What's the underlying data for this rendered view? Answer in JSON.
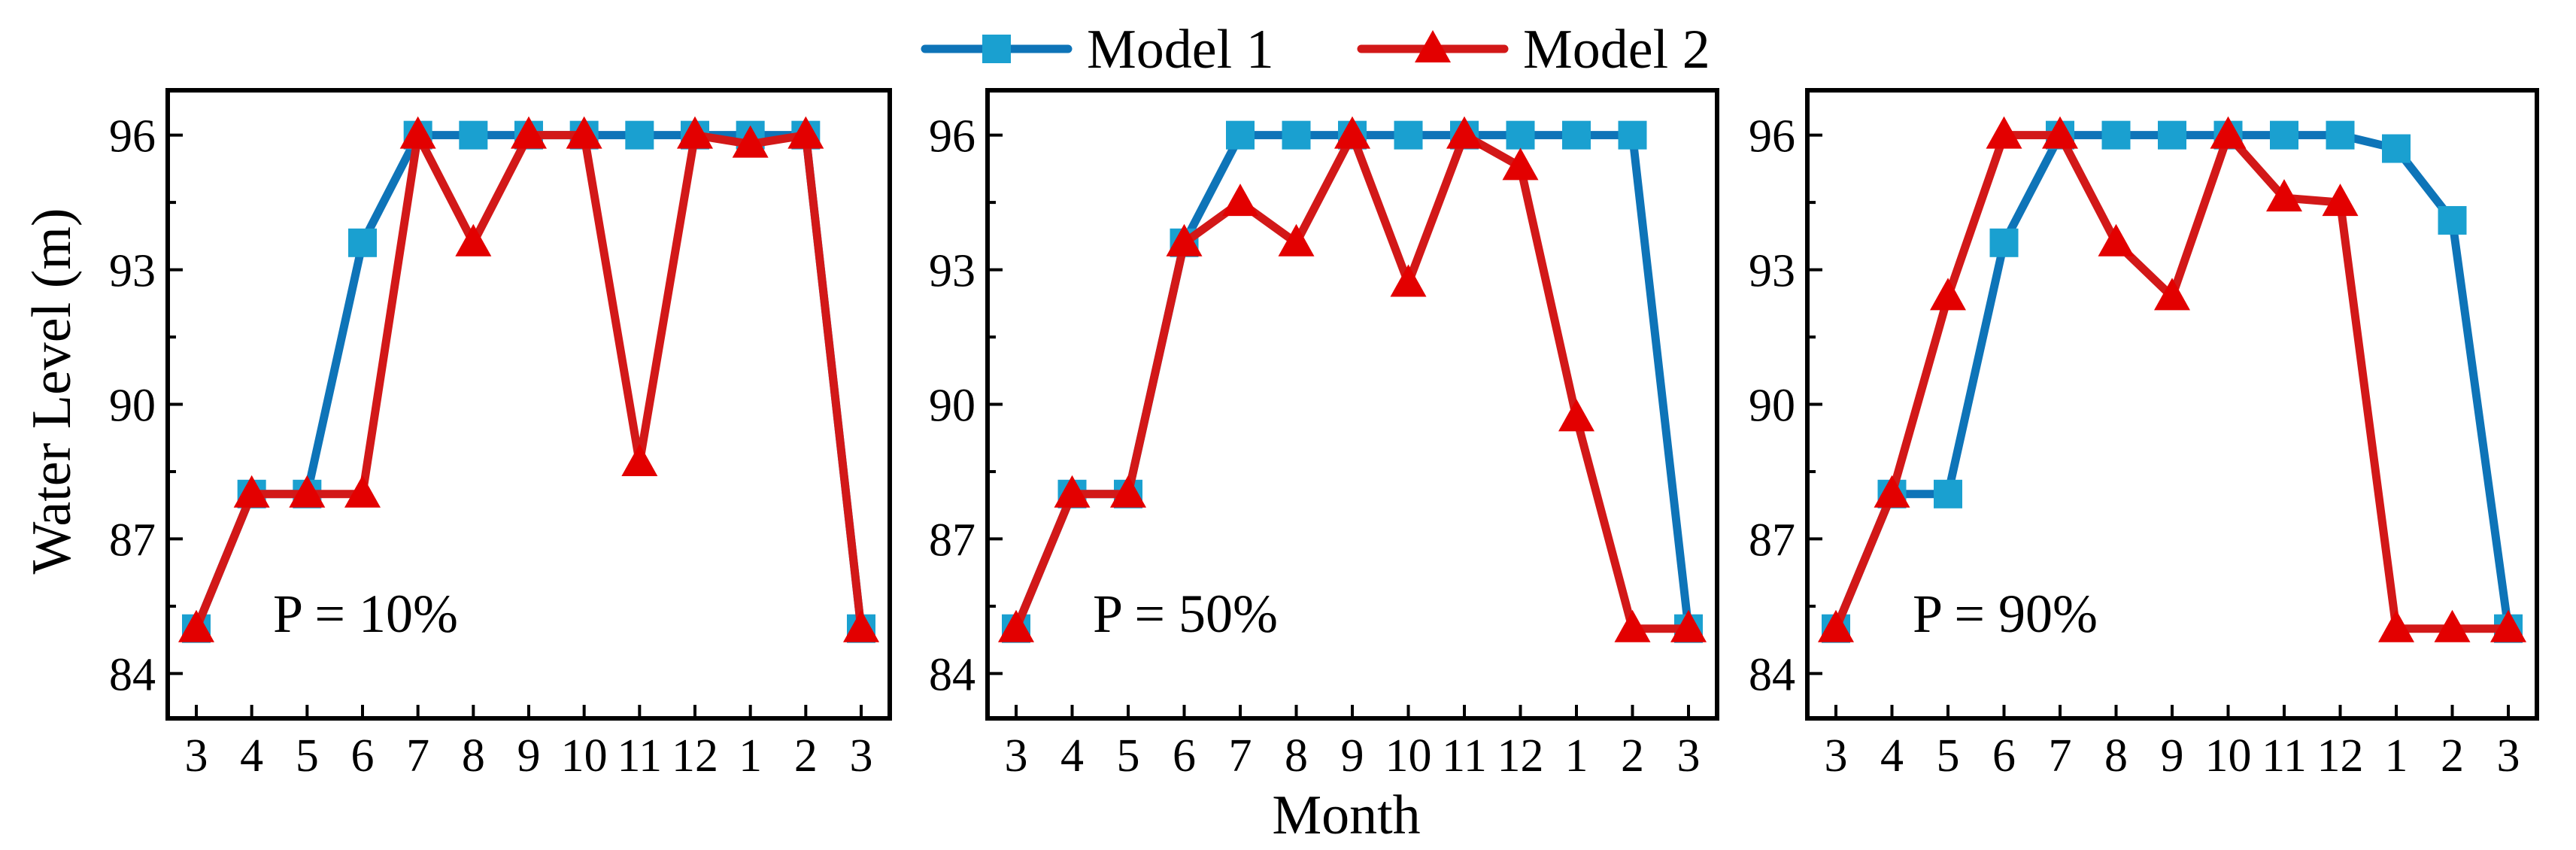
{
  "figure": {
    "ylabel": "Water Level (m)",
    "xlabel": "Month",
    "legend": [
      {
        "name": "Model 1",
        "marker": "square",
        "color": "#0e74b8",
        "marker_color": "#1aa0d0"
      },
      {
        "name": "Model 2",
        "marker": "triangle",
        "color": "#d21818",
        "marker_color": "#e30000"
      }
    ]
  },
  "chart_data": [
    {
      "type": "line",
      "annotation": "P = 10%",
      "categories": [
        "3",
        "4",
        "5",
        "6",
        "7",
        "8",
        "9",
        "10",
        "11",
        "12",
        "1",
        "2",
        "3"
      ],
      "ylim": [
        83,
        97
      ],
      "yticks": [
        84,
        87,
        90,
        93,
        96
      ],
      "series": [
        {
          "name": "Model 1",
          "values": [
            85,
            88,
            88,
            93.6,
            96,
            96,
            96,
            96,
            96,
            96,
            96,
            96,
            85
          ]
        },
        {
          "name": "Model 2",
          "values": [
            85,
            88,
            88,
            88,
            96,
            93.6,
            96,
            96,
            88.7,
            96,
            95.8,
            96,
            85
          ]
        }
      ]
    },
    {
      "type": "line",
      "annotation": "P = 50%",
      "categories": [
        "3",
        "4",
        "5",
        "6",
        "7",
        "8",
        "9",
        "10",
        "11",
        "12",
        "1",
        "2",
        "3"
      ],
      "ylim": [
        83,
        97
      ],
      "yticks": [
        84,
        87,
        90,
        93,
        96
      ],
      "series": [
        {
          "name": "Model 1",
          "values": [
            85,
            88,
            88,
            93.6,
            96,
            96,
            96,
            96,
            96,
            96,
            96,
            96,
            85
          ]
        },
        {
          "name": "Model 2",
          "values": [
            85,
            88,
            88,
            93.6,
            94.5,
            93.6,
            96,
            92.7,
            96,
            95.3,
            89.7,
            85,
            85
          ]
        }
      ]
    },
    {
      "type": "line",
      "annotation": "P = 90%",
      "categories": [
        "3",
        "4",
        "5",
        "6",
        "7",
        "8",
        "9",
        "10",
        "11",
        "12",
        "1",
        "2",
        "3"
      ],
      "ylim": [
        83,
        97
      ],
      "yticks": [
        84,
        87,
        90,
        93,
        96
      ],
      "series": [
        {
          "name": "Model 1",
          "values": [
            85,
            88,
            88,
            93.6,
            96,
            96,
            96,
            96,
            96,
            96,
            95.7,
            94.1,
            85
          ]
        },
        {
          "name": "Model 2",
          "values": [
            85,
            88,
            92.4,
            96,
            96,
            93.6,
            92.4,
            96,
            94.6,
            94.5,
            85,
            85,
            85
          ]
        }
      ]
    }
  ]
}
